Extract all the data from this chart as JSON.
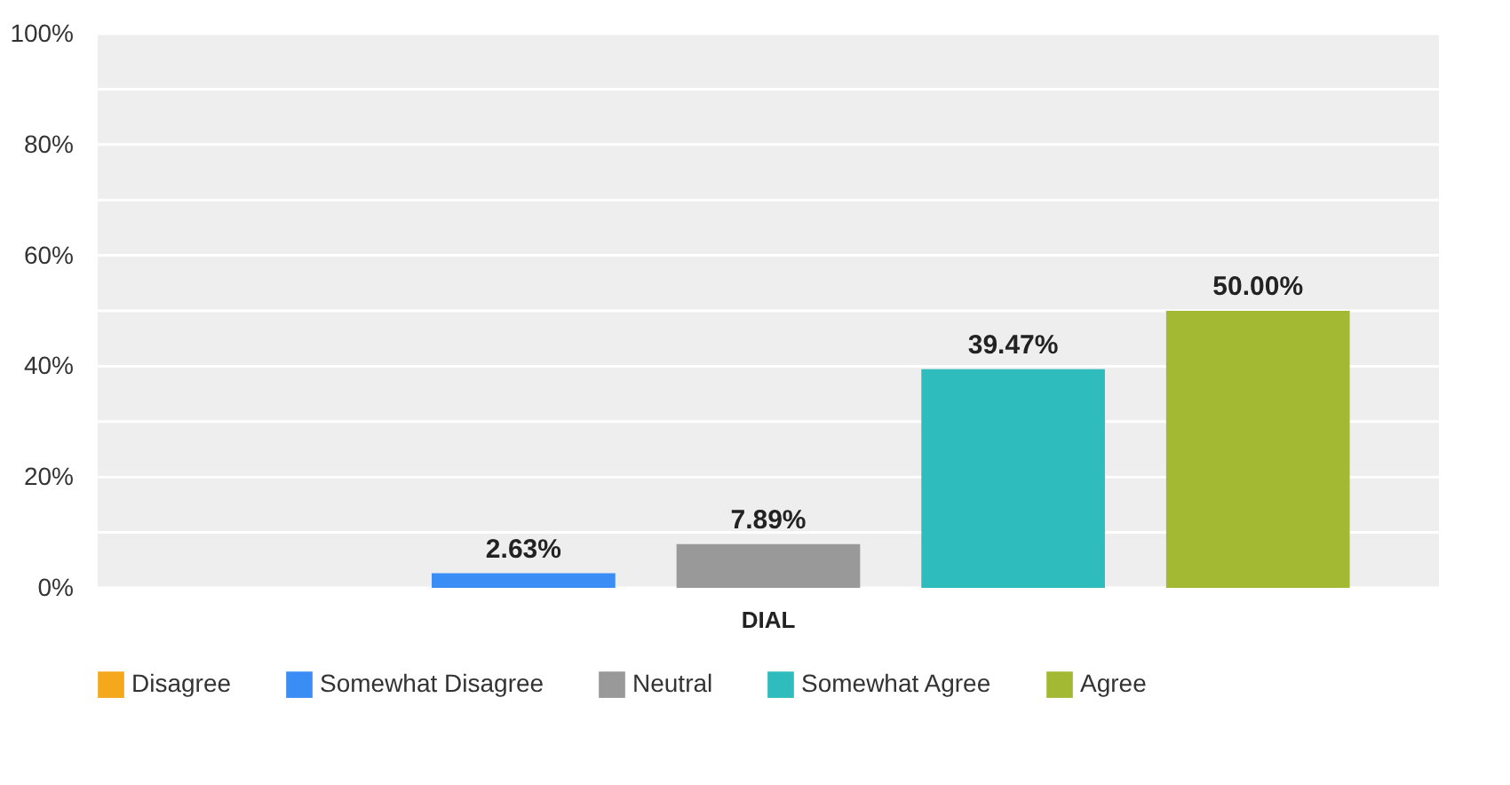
{
  "chart_data": {
    "type": "bar",
    "categories": [
      "DIAL"
    ],
    "series": [
      {
        "name": "Disagree",
        "color": "#f5a81c",
        "values": [
          0
        ],
        "value_labels": [
          null
        ]
      },
      {
        "name": "Somewhat Disagree",
        "color": "#3a8df5",
        "values": [
          2.63
        ],
        "value_labels": [
          "2.63%"
        ]
      },
      {
        "name": "Neutral",
        "color": "#999999",
        "values": [
          7.89
        ],
        "value_labels": [
          "7.89%"
        ]
      },
      {
        "name": "Somewhat Agree",
        "color": "#2fbcbc",
        "values": [
          39.47
        ],
        "value_labels": [
          "39.47%"
        ]
      },
      {
        "name": "Agree",
        "color": "#a4b933",
        "values": [
          50.0
        ],
        "value_labels": [
          "50.00%"
        ]
      }
    ],
    "ylim": [
      0,
      100
    ],
    "yticks": [
      {
        "value": 0,
        "label": "0%"
      },
      {
        "value": 10,
        "label": null
      },
      {
        "value": 20,
        "label": "20%"
      },
      {
        "value": 30,
        "label": null
      },
      {
        "value": 40,
        "label": "40%"
      },
      {
        "value": 50,
        "label": null
      },
      {
        "value": 60,
        "label": "60%"
      },
      {
        "value": 70,
        "label": null
      },
      {
        "value": 80,
        "label": "80%"
      },
      {
        "value": 90,
        "label": null
      },
      {
        "value": 100,
        "label": "100%"
      }
    ],
    "grid": "y",
    "legend": "bottom"
  }
}
